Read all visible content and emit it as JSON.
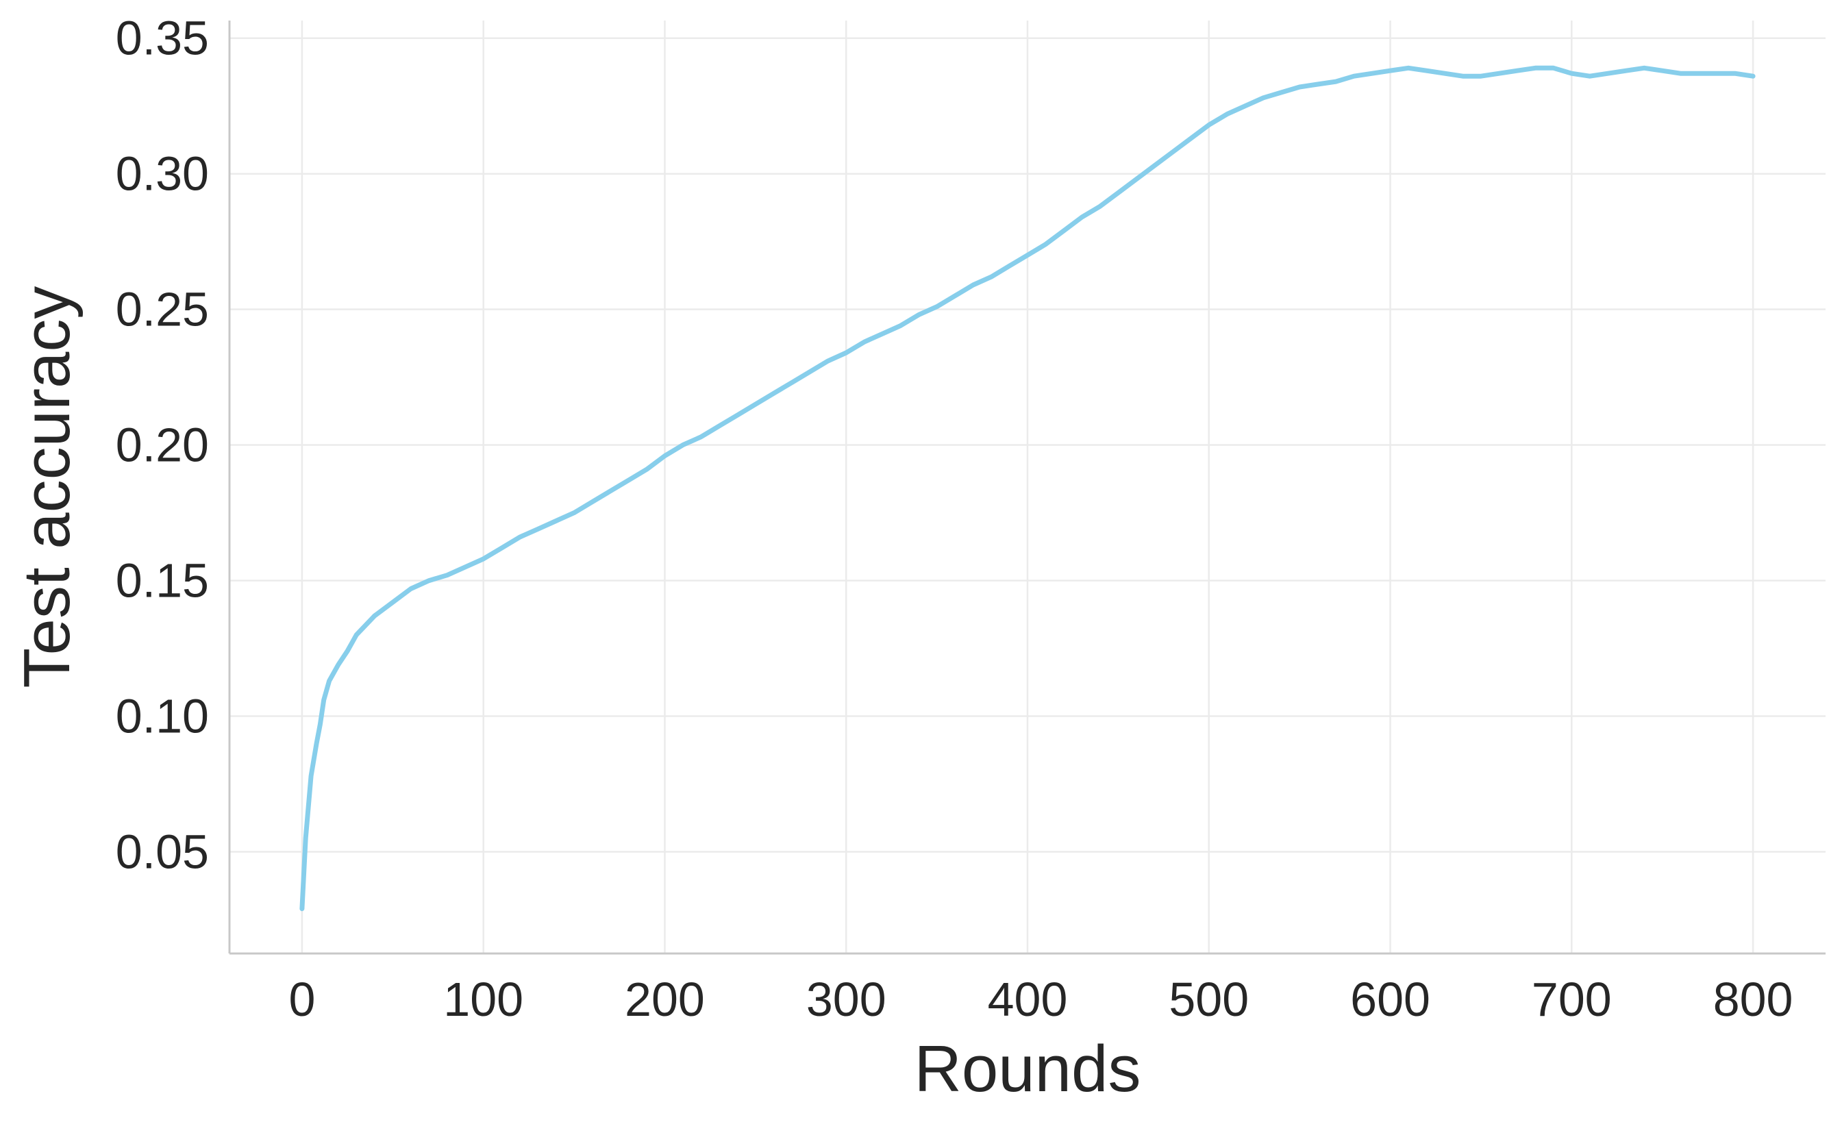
{
  "chart_data": {
    "type": "line",
    "title": "",
    "xlabel": "Rounds",
    "ylabel": "Test accuracy",
    "xlim": [
      -40,
      840
    ],
    "ylim": [
      0.0125,
      0.3565
    ],
    "xticks": [
      0,
      100,
      200,
      300,
      400,
      500,
      600,
      700,
      800
    ],
    "xtick_labels": [
      "0",
      "100",
      "200",
      "300",
      "400",
      "500",
      "600",
      "700",
      "800"
    ],
    "yticks": [
      0.05,
      0.1,
      0.15,
      0.2,
      0.25,
      0.3,
      0.35
    ],
    "ytick_labels": [
      "0.05",
      "0.10",
      "0.15",
      "0.20",
      "0.25",
      "0.30",
      "0.35"
    ],
    "grid": true,
    "legend": "none",
    "colors": {
      "line": "#87ceeb",
      "grid": "#ebebeb",
      "spine": "#c8c8c8",
      "text": "#262626"
    },
    "series": [
      {
        "x": [
          0,
          2,
          5,
          8,
          10,
          12,
          15,
          20,
          25,
          30,
          40,
          50,
          60,
          70,
          80,
          90,
          100,
          110,
          120,
          130,
          140,
          150,
          160,
          170,
          180,
          190,
          200,
          210,
          220,
          230,
          240,
          250,
          260,
          270,
          280,
          290,
          300,
          310,
          320,
          330,
          340,
          350,
          360,
          370,
          380,
          390,
          400,
          410,
          420,
          430,
          440,
          450,
          460,
          470,
          480,
          490,
          500,
          510,
          520,
          530,
          540,
          550,
          560,
          570,
          580,
          590,
          600,
          610,
          620,
          630,
          640,
          650,
          660,
          670,
          680,
          690,
          700,
          710,
          720,
          730,
          740,
          750,
          760,
          770,
          780,
          790,
          800
        ],
        "y": [
          0.029,
          0.055,
          0.078,
          0.09,
          0.097,
          0.106,
          0.113,
          0.119,
          0.124,
          0.13,
          0.137,
          0.142,
          0.147,
          0.15,
          0.152,
          0.155,
          0.158,
          0.162,
          0.166,
          0.169,
          0.172,
          0.175,
          0.179,
          0.183,
          0.187,
          0.191,
          0.196,
          0.2,
          0.203,
          0.207,
          0.211,
          0.215,
          0.219,
          0.223,
          0.227,
          0.231,
          0.234,
          0.238,
          0.241,
          0.244,
          0.248,
          0.251,
          0.255,
          0.259,
          0.262,
          0.266,
          0.27,
          0.274,
          0.279,
          0.284,
          0.288,
          0.293,
          0.298,
          0.303,
          0.308,
          0.313,
          0.318,
          0.322,
          0.325,
          0.328,
          0.33,
          0.332,
          0.333,
          0.334,
          0.336,
          0.337,
          0.338,
          0.339,
          0.338,
          0.337,
          0.336,
          0.336,
          0.337,
          0.338,
          0.339,
          0.339,
          0.337,
          0.336,
          0.337,
          0.338,
          0.339,
          0.338,
          0.337,
          0.337,
          0.337,
          0.337,
          0.336
        ]
      }
    ]
  }
}
